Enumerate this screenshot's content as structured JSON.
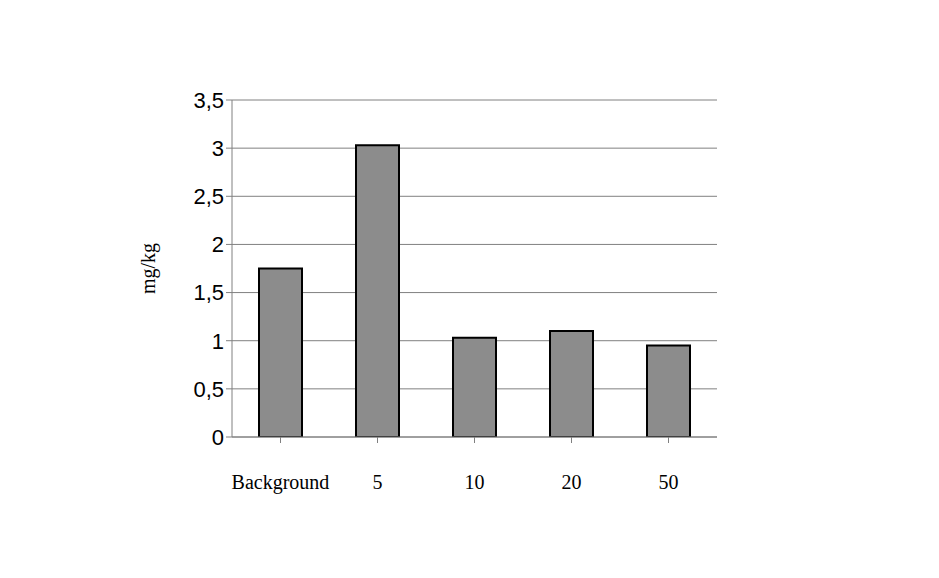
{
  "chart_data": {
    "type": "bar",
    "y_label": "mg/kg",
    "categories": [
      "Background",
      "5",
      "10",
      "20",
      "50"
    ],
    "values": [
      1.75,
      3.03,
      1.03,
      1.1,
      0.95
    ],
    "color": "#8c8c8c",
    "ylim": [
      0,
      3.5
    ],
    "yticks": [
      0,
      {
        "value": 0.5,
        "label": "0,5"
      },
      1,
      {
        "value": 1.5,
        "label": "1,5"
      },
      2,
      {
        "value": 2.5,
        "label": "2,5"
      },
      3,
      {
        "value": 3.5,
        "label": "3,5"
      }
    ],
    "grid": true
  }
}
